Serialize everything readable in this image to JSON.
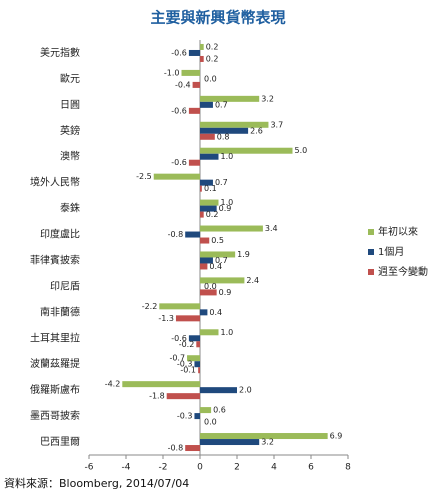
{
  "chart_data": {
    "type": "hbar",
    "title": "主要與新興貨幣表現",
    "source": "資料來源：Bloomberg, 2014/07/04",
    "categories": [
      "美元指數",
      "歐元",
      "日圓",
      "英鎊",
      "澳幣",
      "境外人民幣",
      "泰銖",
      "印度盧比",
      "菲律賓披索",
      "印尼盾",
      "南非蘭德",
      "土耳其里拉",
      "波蘭茲羅提",
      "俄羅斯盧布",
      "墨西哥披索",
      "巴西里爾"
    ],
    "series": [
      {
        "name": "年初以來",
        "color": "#9bbb59",
        "values": [
          0.2,
          -1.0,
          3.2,
          3.7,
          5.0,
          -2.5,
          1.0,
          3.4,
          1.9,
          2.4,
          -2.2,
          1.0,
          -0.7,
          -4.2,
          0.6,
          6.9
        ],
        "value_labels": [
          "0.2",
          "-1.0",
          "3.2",
          "3.7",
          "5.0",
          "-2.5",
          "1.0",
          "3.4",
          "1.9",
          "2.4",
          "-2.2",
          "1.0",
          "-0.7",
          "-4.2",
          "0.6",
          "6.9"
        ]
      },
      {
        "name": "1個月",
        "color": "#1f497d",
        "values": [
          -0.6,
          0.0,
          0.7,
          2.6,
          1.0,
          0.7,
          0.9,
          -0.8,
          0.7,
          0.0,
          0.4,
          -0.6,
          -0.3,
          2.0,
          -0.3,
          3.2
        ],
        "value_labels": [
          "-0.6",
          "0.0",
          "0.7",
          "2.6",
          "1.0",
          "0.7",
          "0.9",
          "-0.8",
          "0.7",
          "0.0",
          "0.4",
          "-0.6",
          "-0.3",
          "2.0",
          "-0.3",
          "3.2"
        ]
      },
      {
        "name": "週至今變動",
        "color": "#c0504d",
        "values": [
          0.2,
          -0.4,
          -0.6,
          0.8,
          -0.6,
          0.1,
          0.2,
          0.5,
          0.4,
          0.9,
          -1.3,
          -0.2,
          -0.1,
          -1.8,
          0.0,
          -0.8
        ],
        "value_labels": [
          "0.2",
          "-0.4",
          "-0.6",
          "0.8",
          "-0.6",
          "0.1",
          "0.2",
          "0.5",
          "0.4",
          "0.9",
          "-1.3",
          "-0.2",
          "-0.1",
          "-1.8",
          "0.0",
          "-0.8"
        ]
      }
    ],
    "xlim": [
      -6,
      8
    ],
    "xticks": [
      -6,
      -4,
      -2,
      0,
      2,
      4,
      6,
      8
    ],
    "legend": "right"
  }
}
